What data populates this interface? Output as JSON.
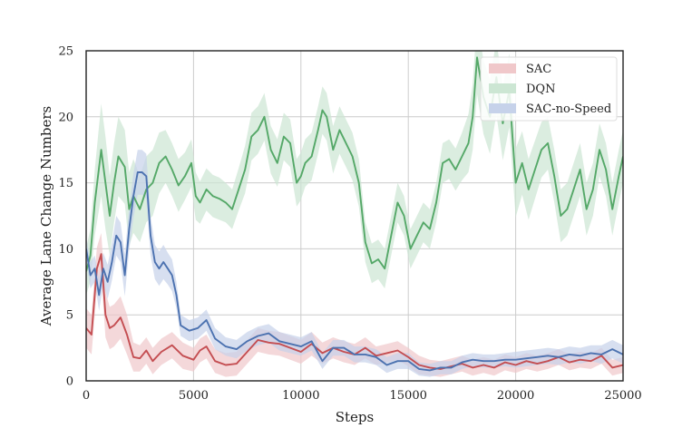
{
  "chart_data": {
    "type": "line",
    "title": "",
    "xlabel": "Steps",
    "ylabel": "Average Lane Change Numbers",
    "xlim": [
      0,
      25000
    ],
    "ylim": [
      0,
      25
    ],
    "xticks": [
      0,
      5000,
      10000,
      15000,
      20000,
      25000
    ],
    "yticks": [
      0,
      5,
      10,
      15,
      20,
      25
    ],
    "grid": true,
    "legend": "top-right",
    "series": [
      {
        "name": "SAC",
        "color": "#c44e52",
        "fill": "#f0c8ca",
        "x": [
          0,
          250,
          500,
          700,
          900,
          1100,
          1300,
          1600,
          1900,
          2200,
          2500,
          2800,
          3100,
          3500,
          4000,
          4500,
          5000,
          5300,
          5600,
          6000,
          6500,
          7000,
          7500,
          8000,
          8500,
          9000,
          9500,
          10000,
          10500,
          11000,
          11500,
          12000,
          12500,
          13000,
          13500,
          14000,
          14500,
          15000,
          15500,
          16000,
          16500,
          17000,
          17500,
          18000,
          18500,
          19000,
          19500,
          20000,
          20500,
          21000,
          21500,
          22000,
          22500,
          23000,
          23500,
          24000,
          24500,
          25000
        ],
        "values": [
          4.0,
          3.5,
          8.5,
          9.6,
          5.0,
          4.0,
          4.2,
          4.8,
          3.5,
          1.8,
          1.7,
          2.3,
          1.5,
          2.2,
          2.7,
          1.9,
          1.6,
          2.3,
          2.6,
          1.5,
          1.2,
          1.3,
          2.2,
          3.1,
          2.9,
          2.8,
          2.5,
          2.2,
          2.8,
          2.1,
          2.5,
          2.2,
          2.0,
          2.5,
          1.9,
          2.1,
          2.3,
          1.8,
          1.2,
          1.0,
          0.9,
          1.1,
          1.3,
          1.0,
          1.2,
          1.0,
          1.4,
          1.2,
          1.5,
          1.3,
          1.5,
          1.8,
          1.4,
          1.6,
          1.5,
          1.9,
          1.0,
          1.2
        ],
        "band": [
          1.5,
          1.5,
          1.6,
          1.6,
          1.7,
          1.6,
          1.6,
          1.6,
          1.5,
          1.1,
          1.0,
          1.0,
          1.0,
          1.0,
          1.0,
          1.0,
          0.9,
          0.9,
          0.9,
          0.9,
          0.9,
          0.9,
          0.9,
          0.9,
          0.9,
          0.9,
          0.9,
          0.9,
          0.9,
          0.8,
          0.8,
          0.8,
          0.8,
          0.8,
          0.7,
          0.7,
          0.7,
          0.7,
          0.7,
          0.6,
          0.6,
          0.6,
          0.6,
          0.6,
          0.6,
          0.6,
          0.6,
          0.6,
          0.6,
          0.6,
          0.6,
          0.6,
          0.6,
          0.6,
          0.6,
          0.6,
          0.6,
          0.6
        ]
      },
      {
        "name": "DQN",
        "color": "#55a868",
        "fill": "#cce6d3",
        "x": [
          0,
          200,
          400,
          700,
          900,
          1100,
          1300,
          1500,
          1800,
          2000,
          2200,
          2500,
          2800,
          3100,
          3400,
          3700,
          4000,
          4300,
          4600,
          4900,
          5100,
          5300,
          5600,
          5900,
          6200,
          6500,
          6800,
          7100,
          7400,
          7700,
          8000,
          8300,
          8600,
          8900,
          9200,
          9500,
          9800,
          10000,
          10200,
          10500,
          10800,
          11000,
          11200,
          11500,
          11800,
          12100,
          12400,
          12700,
          13000,
          13300,
          13600,
          13900,
          14200,
          14500,
          14800,
          15100,
          15400,
          15700,
          16000,
          16300,
          16600,
          16900,
          17200,
          17500,
          17800,
          18000,
          18200,
          18500,
          18800,
          19100,
          19400,
          19700,
          20000,
          20300,
          20600,
          20900,
          21200,
          21500,
          21800,
          22100,
          22400,
          22700,
          23000,
          23300,
          23600,
          23900,
          24200,
          24500,
          24800,
          25000
        ],
        "values": [
          8.3,
          9.5,
          13.5,
          17.5,
          15.0,
          12.5,
          15.0,
          17.0,
          16.2,
          13.0,
          14.0,
          13.0,
          14.5,
          15.0,
          16.5,
          17.0,
          16.0,
          14.8,
          15.5,
          16.5,
          14.0,
          13.5,
          14.5,
          14.0,
          13.8,
          13.5,
          13.0,
          14.5,
          16.0,
          18.5,
          19.0,
          20.0,
          17.5,
          16.5,
          18.5,
          18.0,
          15.0,
          15.5,
          16.5,
          17.0,
          19.0,
          20.5,
          20.0,
          17.5,
          19.0,
          18.0,
          17.0,
          15.0,
          10.5,
          8.9,
          9.2,
          8.5,
          11.0,
          13.5,
          12.5,
          10.0,
          11.0,
          12.0,
          11.5,
          13.5,
          16.5,
          16.8,
          16.0,
          17.0,
          18.0,
          20.0,
          24.5,
          21.5,
          20.0,
          23.0,
          19.5,
          22.0,
          15.0,
          16.5,
          14.5,
          16.0,
          17.5,
          18.0,
          15.5,
          12.5,
          13.0,
          14.5,
          16.0,
          13.0,
          14.5,
          17.5,
          16.0,
          13.0,
          15.5,
          17.0
        ],
        "band": [
          1.8,
          2.0,
          2.5,
          3.5,
          3.5,
          3.0,
          3.0,
          3.0,
          2.8,
          2.8,
          2.8,
          2.5,
          2.5,
          2.5,
          2.3,
          2.0,
          2.0,
          2.0,
          1.8,
          1.8,
          1.8,
          1.6,
          1.6,
          1.6,
          1.6,
          1.5,
          1.5,
          1.6,
          1.8,
          1.8,
          1.8,
          1.8,
          1.8,
          1.8,
          1.8,
          1.8,
          1.8,
          1.8,
          1.8,
          1.8,
          1.8,
          1.8,
          1.8,
          1.8,
          1.8,
          1.8,
          1.8,
          1.8,
          1.5,
          1.5,
          1.5,
          1.5,
          1.5,
          1.5,
          1.5,
          1.5,
          1.5,
          1.5,
          1.5,
          1.5,
          1.5,
          1.5,
          1.6,
          1.8,
          2.2,
          2.5,
          2.8,
          2.8,
          2.8,
          2.8,
          2.8,
          2.8,
          2.6,
          2.4,
          2.3,
          2.2,
          2.1,
          2.0,
          2.0,
          2.0,
          2.0,
          2.0,
          2.0,
          2.0,
          2.0,
          2.0,
          2.0,
          2.0,
          2.0,
          2.0
        ]
      },
      {
        "name": "SAC-no-Speed",
        "color": "#4c72b0",
        "fill": "#c6d2ea",
        "x": [
          0,
          200,
          400,
          600,
          800,
          1000,
          1200,
          1400,
          1600,
          1800,
          2000,
          2200,
          2400,
          2600,
          2800,
          3000,
          3200,
          3400,
          3600,
          3800,
          4000,
          4200,
          4400,
          4800,
          5200,
          5600,
          6000,
          6500,
          7000,
          7500,
          8000,
          8500,
          9000,
          9500,
          10000,
          10500,
          11000,
          11500,
          12000,
          12500,
          13000,
          13500,
          14000,
          14500,
          15000,
          15500,
          16000,
          16500,
          17000,
          17500,
          18000,
          18500,
          19000,
          19500,
          20000,
          20500,
          21000,
          21500,
          22000,
          22500,
          23000,
          23500,
          24000,
          24500,
          25000
        ],
        "values": [
          10.0,
          8.0,
          8.5,
          6.5,
          8.5,
          7.5,
          9.0,
          11.0,
          10.5,
          8.0,
          11.5,
          14.0,
          15.8,
          15.8,
          15.5,
          11.0,
          9.0,
          8.5,
          9.0,
          8.5,
          8.0,
          6.5,
          4.2,
          3.8,
          4.0,
          4.6,
          3.2,
          2.6,
          2.4,
          3.0,
          3.4,
          3.6,
          3.0,
          2.8,
          2.6,
          3.0,
          1.5,
          2.5,
          2.5,
          2.0,
          2.0,
          1.8,
          1.2,
          1.5,
          1.5,
          0.9,
          0.8,
          1.0,
          1.0,
          1.4,
          1.6,
          1.5,
          1.5,
          1.6,
          1.6,
          1.7,
          1.8,
          1.9,
          1.8,
          2.0,
          1.9,
          2.1,
          2.0,
          2.4,
          2.0
        ],
        "band": [
          0.9,
          1.0,
          1.0,
          1.2,
          1.2,
          1.3,
          1.4,
          1.5,
          1.5,
          1.6,
          1.6,
          1.7,
          1.7,
          1.7,
          1.7,
          1.5,
          1.3,
          1.3,
          1.3,
          1.2,
          1.2,
          1.0,
          0.8,
          0.8,
          0.8,
          0.8,
          0.8,
          0.7,
          0.7,
          0.7,
          0.7,
          0.7,
          0.7,
          0.7,
          0.7,
          0.7,
          0.6,
          0.6,
          0.6,
          0.6,
          0.6,
          0.6,
          0.6,
          0.6,
          0.6,
          0.5,
          0.5,
          0.5,
          0.5,
          0.5,
          0.5,
          0.5,
          0.5,
          0.5,
          0.6,
          0.6,
          0.6,
          0.6,
          0.6,
          0.6,
          0.6,
          0.6,
          0.7,
          0.7,
          0.7
        ]
      }
    ]
  }
}
